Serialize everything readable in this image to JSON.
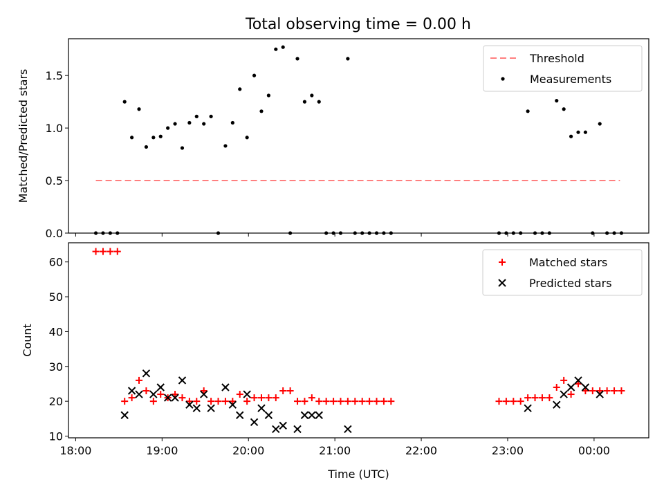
{
  "title": "Total observing time = 0.00 h",
  "chart_data": [
    {
      "type": "scatter",
      "ylabel": "Matched/Predicted stars",
      "xlabel": "",
      "xlim": [
        "17:55",
        "00:38"
      ],
      "ylim": [
        0,
        1.85
      ],
      "yticks": [
        0.0,
        0.5,
        1.0,
        1.5
      ],
      "ytick_labels": [
        "0.0",
        "0.5",
        "1.0",
        "1.5"
      ],
      "xticks": [
        "18:00",
        "19:00",
        "20:00",
        "21:00",
        "22:00",
        "23:00",
        "00:00"
      ],
      "grid": false,
      "legend": "upper right",
      "legend_entries": [
        "Threshold",
        "Measurements"
      ],
      "threshold": {
        "name": "Threshold",
        "y": 0.5,
        "x_start": "18:14",
        "x_end": "00:18",
        "color": "#ff7f7f",
        "style": "dashed"
      },
      "series": [
        {
          "name": "Measurements",
          "color": "#000000",
          "marker": "dot",
          "points": [
            [
              "18:14",
              0.0
            ],
            [
              "18:19",
              0.0
            ],
            [
              "18:24",
              0.0
            ],
            [
              "18:29",
              0.0
            ],
            [
              "18:34",
              1.25
            ],
            [
              "18:39",
              0.91
            ],
            [
              "18:44",
              1.18
            ],
            [
              "18:49",
              0.82
            ],
            [
              "18:54",
              0.91
            ],
            [
              "18:59",
              0.92
            ],
            [
              "19:04",
              1.0
            ],
            [
              "19:09",
              1.04
            ],
            [
              "19:14",
              0.81
            ],
            [
              "19:19",
              1.05
            ],
            [
              "19:24",
              1.11
            ],
            [
              "19:29",
              1.04
            ],
            [
              "19:34",
              1.11
            ],
            [
              "19:39",
              0.0
            ],
            [
              "19:44",
              0.83
            ],
            [
              "19:49",
              1.05
            ],
            [
              "19:54",
              1.37
            ],
            [
              "19:59",
              0.91
            ],
            [
              "20:04",
              1.5
            ],
            [
              "20:09",
              1.16
            ],
            [
              "20:14",
              1.31
            ],
            [
              "20:19",
              1.75
            ],
            [
              "20:24",
              1.77
            ],
            [
              "20:29",
              0.0
            ],
            [
              "20:34",
              1.66
            ],
            [
              "20:39",
              1.25
            ],
            [
              "20:44",
              1.31
            ],
            [
              "20:49",
              1.25
            ],
            [
              "20:54",
              0.0
            ],
            [
              "20:59",
              0.0
            ],
            [
              "21:04",
              0.0
            ],
            [
              "21:09",
              1.66
            ],
            [
              "21:14",
              0.0
            ],
            [
              "21:19",
              0.0
            ],
            [
              "21:24",
              0.0
            ],
            [
              "21:29",
              0.0
            ],
            [
              "21:34",
              0.0
            ],
            [
              "21:39",
              0.0
            ],
            [
              "22:54",
              0.0
            ],
            [
              "22:59",
              0.0
            ],
            [
              "23:04",
              0.0
            ],
            [
              "23:09",
              0.0
            ],
            [
              "23:14",
              1.16
            ],
            [
              "23:19",
              0.0
            ],
            [
              "23:24",
              0.0
            ],
            [
              "23:29",
              0.0
            ],
            [
              "23:34",
              1.26
            ],
            [
              "23:39",
              1.18
            ],
            [
              "23:44",
              0.92
            ],
            [
              "23:49",
              0.96
            ],
            [
              "23:54",
              0.96
            ],
            [
              "23:59",
              0.0
            ],
            [
              "00:04",
              1.04
            ],
            [
              "00:09",
              0.0
            ],
            [
              "00:14",
              0.0
            ],
            [
              "00:19",
              0.0
            ]
          ]
        }
      ]
    },
    {
      "type": "scatter",
      "ylabel": "Count",
      "xlabel": "Time (UTC)",
      "xlim": [
        "17:55",
        "00:38"
      ],
      "ylim": [
        9.5,
        65.5
      ],
      "yticks": [
        10,
        20,
        30,
        40,
        50,
        60
      ],
      "ytick_labels": [
        "10",
        "20",
        "30",
        "40",
        "50",
        "60"
      ],
      "xticks": [
        "18:00",
        "19:00",
        "20:00",
        "21:00",
        "22:00",
        "23:00",
        "00:00"
      ],
      "grid": false,
      "legend": "upper right",
      "legend_entries": [
        "Matched stars",
        "Predicted stars"
      ],
      "series": [
        {
          "name": "Matched stars",
          "color": "#ff0000",
          "marker": "plus",
          "points": [
            [
              "18:14",
              63
            ],
            [
              "18:19",
              63
            ],
            [
              "18:24",
              63
            ],
            [
              "18:29",
              63
            ],
            [
              "18:34",
              20
            ],
            [
              "18:39",
              21
            ],
            [
              "18:44",
              26
            ],
            [
              "18:49",
              23
            ],
            [
              "18:54",
              20
            ],
            [
              "18:59",
              22
            ],
            [
              "19:04",
              21
            ],
            [
              "19:09",
              22
            ],
            [
              "19:14",
              21
            ],
            [
              "19:19",
              20
            ],
            [
              "19:24",
              20
            ],
            [
              "19:29",
              23
            ],
            [
              "19:34",
              20
            ],
            [
              "19:39",
              20
            ],
            [
              "19:44",
              20
            ],
            [
              "19:49",
              20
            ],
            [
              "19:54",
              22
            ],
            [
              "19:59",
              20
            ],
            [
              "20:04",
              21
            ],
            [
              "20:09",
              21
            ],
            [
              "20:14",
              21
            ],
            [
              "20:19",
              21
            ],
            [
              "20:24",
              23
            ],
            [
              "20:29",
              23
            ],
            [
              "20:34",
              20
            ],
            [
              "20:39",
              20
            ],
            [
              "20:44",
              21
            ],
            [
              "20:49",
              20
            ],
            [
              "20:54",
              20
            ],
            [
              "20:59",
              20
            ],
            [
              "21:04",
              20
            ],
            [
              "21:09",
              20
            ],
            [
              "21:14",
              20
            ],
            [
              "21:19",
              20
            ],
            [
              "21:24",
              20
            ],
            [
              "21:29",
              20
            ],
            [
              "21:34",
              20
            ],
            [
              "21:39",
              20
            ],
            [
              "22:54",
              20
            ],
            [
              "22:59",
              20
            ],
            [
              "23:04",
              20
            ],
            [
              "23:09",
              20
            ],
            [
              "23:14",
              21
            ],
            [
              "23:19",
              21
            ],
            [
              "23:24",
              21
            ],
            [
              "23:29",
              21
            ],
            [
              "23:34",
              24
            ],
            [
              "23:39",
              26
            ],
            [
              "23:44",
              22
            ],
            [
              "23:49",
              25
            ],
            [
              "23:54",
              23
            ],
            [
              "23:59",
              23
            ],
            [
              "00:04",
              23
            ],
            [
              "00:09",
              23
            ],
            [
              "00:14",
              23
            ],
            [
              "00:19",
              23
            ]
          ]
        },
        {
          "name": "Predicted stars",
          "color": "#000000",
          "marker": "x",
          "points": [
            [
              "18:34",
              16
            ],
            [
              "18:39",
              23
            ],
            [
              "18:44",
              22
            ],
            [
              "18:49",
              28
            ],
            [
              "18:54",
              22
            ],
            [
              "18:59",
              24
            ],
            [
              "19:04",
              21
            ],
            [
              "19:09",
              21
            ],
            [
              "19:14",
              26
            ],
            [
              "19:19",
              19
            ],
            [
              "19:24",
              18
            ],
            [
              "19:29",
              22
            ],
            [
              "19:34",
              18
            ],
            [
              "19:44",
              24
            ],
            [
              "19:49",
              19
            ],
            [
              "19:54",
              16
            ],
            [
              "19:59",
              22
            ],
            [
              "20:04",
              14
            ],
            [
              "20:09",
              18
            ],
            [
              "20:14",
              16
            ],
            [
              "20:19",
              12
            ],
            [
              "20:24",
              13
            ],
            [
              "20:34",
              12
            ],
            [
              "20:39",
              16
            ],
            [
              "20:44",
              16
            ],
            [
              "20:49",
              16
            ],
            [
              "21:09",
              12
            ],
            [
              "23:14",
              18
            ],
            [
              "23:34",
              19
            ],
            [
              "23:39",
              22
            ],
            [
              "23:44",
              24
            ],
            [
              "23:49",
              26
            ],
            [
              "23:54",
              24
            ],
            [
              "00:04",
              22
            ]
          ]
        }
      ]
    }
  ]
}
